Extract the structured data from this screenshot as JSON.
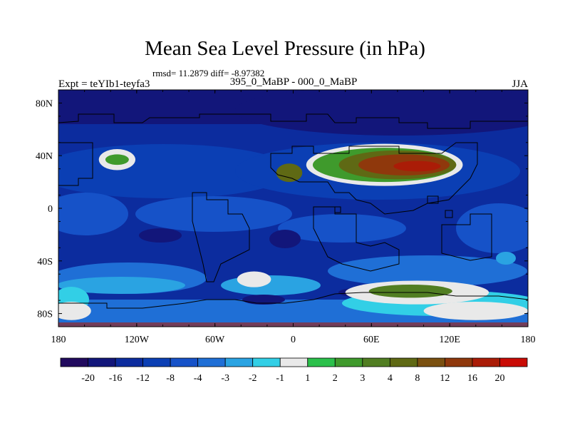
{
  "chart_data": {
    "type": "heatmap",
    "title": "Mean Sea Level Pressure (in hPa)",
    "stats": "rmsd= 11.2879 diff= -8.97382",
    "left_label": "Expt = teYIb1-teyfa3",
    "center_label": "395_0_MaBP - 000_0_MaBP",
    "right_label": "JJA",
    "xlim": [
      -180,
      180
    ],
    "ylim": [
      -90,
      90
    ],
    "x_ticks": [
      {
        "value": -180,
        "label": "180"
      },
      {
        "value": -120,
        "label": "120W"
      },
      {
        "value": -60,
        "label": "60W"
      },
      {
        "value": 0,
        "label": "0"
      },
      {
        "value": 60,
        "label": "60E"
      },
      {
        "value": 120,
        "label": "120E"
      },
      {
        "value": 180,
        "label": "180"
      }
    ],
    "y_ticks": [
      {
        "value": 80,
        "label": "80N"
      },
      {
        "value": 40,
        "label": "40N"
      },
      {
        "value": 0,
        "label": "0"
      },
      {
        "value": -40,
        "label": "40S"
      },
      {
        "value": -80,
        "label": "80S"
      }
    ],
    "colorbar": {
      "colors": [
        "#210a5e",
        "#12167a",
        "#0c2c9e",
        "#0b3fb4",
        "#1652c8",
        "#1f6fd6",
        "#2aa3e2",
        "#32cfe6",
        "#e9e9e9",
        "#2bc04b",
        "#3f9a2c",
        "#517e22",
        "#5f6914",
        "#7a5010",
        "#8f380c",
        "#aa1c07",
        "#c90b05"
      ],
      "labels": [
        "-20",
        "-16",
        "-12",
        "-8",
        "-4",
        "-3",
        "-2",
        "-1",
        "1",
        "2",
        "3",
        "4",
        "8",
        "12",
        "16",
        "20"
      ]
    },
    "field_bands": [
      {
        "lon": -135,
        "lat": 37,
        "r_lon": 14,
        "r_lat": 8,
        "level": "-1"
      },
      {
        "lon": -135,
        "lat": 37,
        "r_lon": 9,
        "r_lat": 4,
        "level": "2"
      },
      {
        "lon": 70,
        "lat": 33,
        "r_lon": 60,
        "r_lat": 16,
        "level": "-1"
      },
      {
        "lon": 70,
        "lat": 33,
        "r_lon": 55,
        "r_lat": 13,
        "level": "2"
      },
      {
        "lon": 80,
        "lat": 33,
        "r_lon": 45,
        "r_lat": 11,
        "level": "4"
      },
      {
        "lon": 85,
        "lat": 33,
        "r_lon": 35,
        "r_lat": 8,
        "level": "12"
      },
      {
        "lon": 95,
        "lat": 32,
        "r_lon": 18,
        "r_lat": 4,
        "level": "16"
      },
      {
        "lon": -3,
        "lat": 27,
        "r_lon": 10,
        "r_lat": 7,
        "level": "4"
      },
      {
        "lon": -30,
        "lat": -54,
        "r_lon": 13,
        "r_lat": 6,
        "level": "-1"
      },
      {
        "lon": 95,
        "lat": -64,
        "r_lon": 55,
        "r_lat": 9,
        "level": "-1"
      },
      {
        "lon": 90,
        "lat": -63,
        "r_lon": 32,
        "r_lat": 5,
        "level": "3"
      },
      {
        "lon": 140,
        "lat": -78,
        "r_lon": 40,
        "r_lat": 7,
        "level": "-1"
      },
      {
        "lon": -170,
        "lat": -78,
        "r_lon": 15,
        "r_lat": 7,
        "level": "-1"
      }
    ]
  }
}
